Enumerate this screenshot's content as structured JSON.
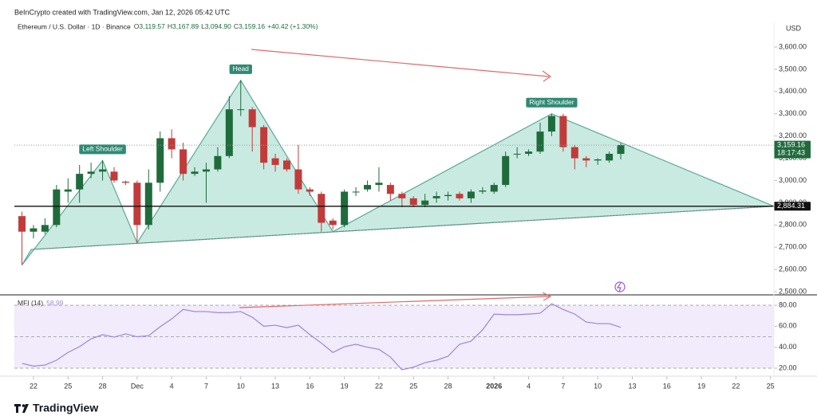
{
  "header": {
    "credit": "BeInCrypto created with TradingView.com, Jan 12, 2026 05:42 UTC",
    "symbol": "Ethereum / U.S. Dollar · 1D · Binance",
    "ohlc": [
      {
        "key": "O",
        "label": "3,119.57"
      },
      {
        "key": "H",
        "label": "3,167.89"
      },
      {
        "key": "L",
        "label": "3,094.90"
      },
      {
        "key": "C",
        "label": "3,159.16"
      }
    ],
    "change": "+40.42 (+1.30%)"
  },
  "chart_data": [
    {
      "type": "candlestick",
      "currency": "USD",
      "x": [
        -1,
        0,
        1,
        2,
        3,
        4,
        5,
        6,
        7,
        8,
        9,
        10,
        11,
        12,
        13,
        14,
        15,
        16,
        17,
        18,
        19,
        20,
        21,
        22,
        23,
        24,
        25,
        26,
        27,
        28,
        29,
        30,
        31,
        32,
        33,
        34,
        35,
        36,
        37,
        38,
        39,
        40,
        41,
        42,
        43,
        44,
        45,
        46,
        47,
        48,
        49,
        50,
        51
      ],
      "open": [
        2840,
        2770,
        2770,
        2800,
        2950,
        2960,
        3030,
        3040,
        3040,
        2995,
        2990,
        2800,
        2990,
        3190,
        3140,
        3030,
        3040,
        3050,
        3110,
        3320,
        3320,
        3240,
        3100,
        3090,
        3050,
        2960,
        2940,
        2820,
        2800,
        2950,
        2960,
        2980,
        2980,
        2940,
        2920,
        2890,
        2920,
        2930,
        2940,
        2920,
        2950,
        2950,
        2980,
        3120,
        3120,
        3130,
        3220,
        3290,
        3150,
        3100,
        3090,
        3090,
        3119.57
      ],
      "high": [
        2860,
        2800,
        2830,
        2980,
        3010,
        3070,
        3080,
        3090,
        3060,
        3000,
        3000,
        3050,
        3220,
        3230,
        3170,
        3060,
        3080,
        3150,
        3380,
        3450,
        3330,
        3250,
        3120,
        3100,
        3160,
        2970,
        2950,
        2830,
        2960,
        2970,
        3000,
        3060,
        2990,
        2950,
        2930,
        2940,
        2950,
        2950,
        2950,
        2960,
        2970,
        2990,
        3130,
        3150,
        3140,
        3260,
        3300,
        3300,
        3160,
        3110,
        3100,
        3130,
        3167.89
      ],
      "low": [
        2620,
        2740,
        2760,
        2790,
        2900,
        2900,
        3010,
        3000,
        2990,
        2980,
        2720,
        2780,
        2950,
        3100,
        3000,
        3020,
        2900,
        3040,
        3100,
        3290,
        3130,
        3050,
        3040,
        3040,
        2940,
        2930,
        2770,
        2780,
        2790,
        2930,
        2950,
        2950,
        2910,
        2880,
        2880,
        2880,
        2900,
        2910,
        2910,
        2900,
        2940,
        2940,
        2970,
        3100,
        3110,
        3120,
        3200,
        3130,
        3050,
        3060,
        3070,
        3080,
        3094.9
      ],
      "close": [
        2770,
        2785,
        2800,
        2960,
        2960,
        3030,
        3040,
        3050,
        3000,
        2990,
        2800,
        2990,
        3190,
        3140,
        3030,
        3040,
        3050,
        3110,
        3320,
        3320,
        3240,
        3080,
        3070,
        3050,
        2960,
        2950,
        2810,
        2800,
        2950,
        2950,
        2980,
        2990,
        2940,
        2920,
        2890,
        2910,
        2930,
        2935,
        2920,
        2950,
        2955,
        2980,
        3110,
        3120,
        3130,
        3220,
        3290,
        3150,
        3100,
        3090,
        3095,
        3120,
        3159.16
      ],
      "up_color": "#1f6b3c",
      "down_color": "#c23b3b",
      "xlim": [
        -1.66,
        64.3
      ],
      "ylim": [
        2486,
        3711
      ],
      "yticks": [
        {
          "value": 2500,
          "label": "2,500.00"
        },
        {
          "value": 2600,
          "label": "2,600.00"
        },
        {
          "value": 2700,
          "label": "2,700.00"
        },
        {
          "value": 2800,
          "label": "2,800.00"
        },
        {
          "value": 2900,
          "label": "2,900.00"
        },
        {
          "value": 3000,
          "label": "3,000.00"
        },
        {
          "value": 3100,
          "label": "3,100.00"
        },
        {
          "value": 3200,
          "label": "3,200.00"
        },
        {
          "value": 3300,
          "label": "3,300.00"
        },
        {
          "value": 3400,
          "label": "3,400.00"
        },
        {
          "value": 3500,
          "label": "3,500.00"
        },
        {
          "value": 3600,
          "label": "3,600.00"
        }
      ],
      "price_lines": [
        {
          "value": 3159.16,
          "label": "3,159.16",
          "sublabel": "18:17:43",
          "style": "dotted",
          "color": "#1f6b3c"
        },
        {
          "value": 2884.31,
          "label": "2,884.31",
          "style": "solid",
          "color": "#111111"
        }
      ],
      "pattern": {
        "x": [
          -1,
          6,
          9,
          18,
          26,
          45,
          64.3,
          -0.2
        ],
        "y": [
          2620,
          3090,
          2720,
          3450,
          2770,
          3300,
          2884.31,
          2690
        ],
        "fill": "#bfe6dc",
        "stroke": "#5aa996"
      },
      "annotations": [
        {
          "text": "Left Shoulder",
          "x": 6,
          "y": 3090
        },
        {
          "text": "Head",
          "x": 18,
          "y": 3450
        },
        {
          "text": "Right Shoulder",
          "x": 45,
          "y": 3300
        }
      ]
    },
    {
      "type": "line",
      "x": [
        -1,
        0,
        1,
        2,
        3,
        4,
        5,
        6,
        7,
        8,
        9,
        10,
        11,
        12,
        13,
        14,
        15,
        16,
        17,
        18,
        19,
        20,
        21,
        22,
        23,
        24,
        25,
        26,
        27,
        28,
        29,
        30,
        31,
        32,
        33,
        34,
        35,
        36,
        37,
        38,
        39,
        40,
        41,
        42,
        43,
        44,
        45,
        46,
        47,
        48,
        49,
        50,
        51
      ],
      "series": [
        {
          "name": "MFI (14)",
          "color": "#9b86d6",
          "values": [
            24.6,
            22,
            23,
            27.6,
            35,
            40.5,
            48,
            52,
            49.6,
            52.7,
            50,
            51,
            59.5,
            67,
            76,
            74,
            74,
            73,
            73,
            74,
            68.6,
            60,
            61,
            58.7,
            61,
            52,
            44,
            35,
            40.5,
            42.8,
            40,
            38,
            30.6,
            18.5,
            21,
            25.3,
            27.6,
            31.4,
            42.8,
            45.8,
            56.5,
            71.6,
            71,
            71,
            71.6,
            72.4,
            81.5,
            76,
            71.6,
            64,
            62.5,
            62.5,
            58.99
          ]
        }
      ],
      "band_lines": [
        80,
        50,
        20
      ],
      "band_fill": "#f1ebfb",
      "xlim": [
        -1.66,
        64.3
      ],
      "ylim": [
        12.4,
        88.4
      ],
      "yticks": [
        {
          "value": 20,
          "label": "20.00"
        },
        {
          "value": 40,
          "label": "40.00"
        },
        {
          "value": 60,
          "label": "60.00"
        },
        {
          "value": 80,
          "label": "80.00"
        }
      ],
      "xticks": [
        {
          "value": 0,
          "label": "22"
        },
        {
          "value": 3,
          "label": "25"
        },
        {
          "value": 6,
          "label": "28"
        },
        {
          "value": 9,
          "label": "Dec"
        },
        {
          "value": 12,
          "label": "4"
        },
        {
          "value": 15,
          "label": "7"
        },
        {
          "value": 18,
          "label": "10"
        },
        {
          "value": 21,
          "label": "13"
        },
        {
          "value": 24,
          "label": "16"
        },
        {
          "value": 27,
          "label": "19"
        },
        {
          "value": 30,
          "label": "22"
        },
        {
          "value": 33,
          "label": "25"
        },
        {
          "value": 36,
          "label": "28"
        },
        {
          "value": 40,
          "label": "2026"
        },
        {
          "value": 43,
          "label": "4"
        },
        {
          "value": 46,
          "label": "7"
        },
        {
          "value": 49,
          "label": "10"
        },
        {
          "value": 52,
          "label": "13"
        },
        {
          "value": 55,
          "label": "16"
        },
        {
          "value": 58,
          "label": "19"
        },
        {
          "value": 61,
          "label": "22"
        },
        {
          "value": 64,
          "label": "25"
        }
      ]
    }
  ],
  "footer": {
    "brand": "TradingView"
  }
}
